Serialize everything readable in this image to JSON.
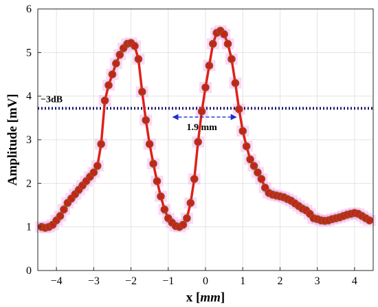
{
  "chart_data": {
    "type": "line",
    "title": "",
    "xlabel_var": "x",
    "xlabel_unit": "mm",
    "ylabel": "Amplitude [mV]",
    "xlim": [
      -4.5,
      4.5
    ],
    "ylim": [
      0,
      6
    ],
    "xticks": [
      -4,
      -3,
      -2,
      -1,
      0,
      1,
      2,
      3,
      4
    ],
    "yticks": [
      0,
      1,
      2,
      3,
      4,
      5,
      6
    ],
    "grid": true,
    "colors": {
      "line": "#e0201c",
      "marker": "#c8221c",
      "marker_edge": "#8a5a1e",
      "threshold": "#1a1a66",
      "arrow": "#1f2ecc",
      "halo": "#f9a6f0"
    },
    "series": [
      {
        "x": [
          -4.4,
          -4.3,
          -4.2,
          -4.1,
          -4.0,
          -3.9,
          -3.8,
          -3.7,
          -3.6,
          -3.5,
          -3.4,
          -3.3,
          -3.2,
          -3.1,
          -3.0,
          -2.9,
          -2.8,
          -2.7,
          -2.6,
          -2.5,
          -2.4,
          -2.3,
          -2.2,
          -2.1,
          -2.0,
          -1.9,
          -1.8,
          -1.7,
          -1.6,
          -1.5,
          -1.4,
          -1.3,
          -1.2,
          -1.1,
          -1.0,
          -0.9,
          -0.8,
          -0.7,
          -0.6,
          -0.5,
          -0.4,
          -0.3,
          -0.2,
          -0.1,
          0.0,
          0.1,
          0.2,
          0.3,
          0.4,
          0.5,
          0.6,
          0.7,
          0.8,
          0.9,
          1.0,
          1.1,
          1.2,
          1.3,
          1.4,
          1.5,
          1.6,
          1.7,
          1.8,
          1.9,
          2.0,
          2.1,
          2.2,
          2.3,
          2.4,
          2.5,
          2.6,
          2.7,
          2.8,
          2.9,
          3.0,
          3.1,
          3.2,
          3.3,
          3.4,
          3.5,
          3.6,
          3.7,
          3.8,
          3.9,
          4.0,
          4.1,
          4.2,
          4.3,
          4.4
        ],
        "values": [
          1.0,
          0.98,
          1.0,
          1.05,
          1.15,
          1.25,
          1.4,
          1.55,
          1.65,
          1.75,
          1.85,
          1.95,
          2.05,
          2.15,
          2.25,
          2.4,
          2.9,
          3.9,
          4.25,
          4.5,
          4.75,
          4.95,
          5.1,
          5.2,
          5.22,
          5.15,
          4.85,
          4.1,
          3.45,
          2.9,
          2.45,
          2.05,
          1.7,
          1.4,
          1.2,
          1.1,
          1.02,
          1.0,
          1.05,
          1.2,
          1.55,
          2.1,
          2.95,
          3.65,
          4.2,
          4.7,
          5.2,
          5.45,
          5.5,
          5.42,
          5.2,
          4.85,
          4.3,
          3.7,
          3.2,
          2.85,
          2.55,
          2.4,
          2.25,
          2.1,
          1.9,
          1.78,
          1.74,
          1.72,
          1.7,
          1.68,
          1.64,
          1.6,
          1.54,
          1.48,
          1.42,
          1.38,
          1.3,
          1.2,
          1.18,
          1.15,
          1.14,
          1.15,
          1.18,
          1.2,
          1.22,
          1.25,
          1.28,
          1.3,
          1.32,
          1.3,
          1.25,
          1.2,
          1.15
        ]
      }
    ],
    "threshold": {
      "label": "−3dB",
      "y": 3.72
    },
    "width_annotation": {
      "label": "1.9 mm",
      "x1": -0.95,
      "x2": 0.9,
      "y": 3.52
    }
  }
}
